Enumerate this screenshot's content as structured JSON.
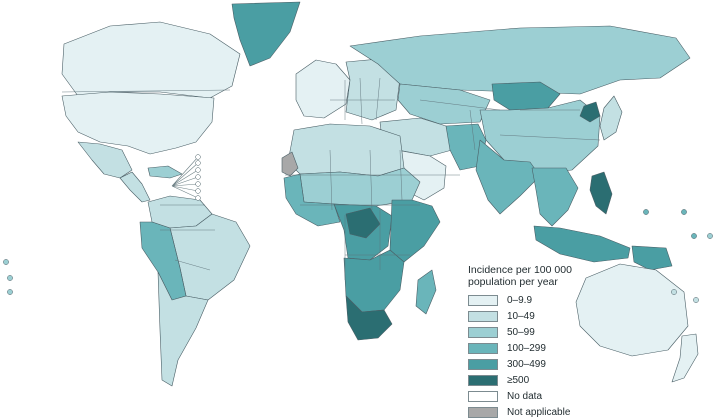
{
  "legend": {
    "title": "Incidence per 100 000 population per year",
    "items": [
      {
        "label": "0–9.9",
        "color": "#e4f1f3"
      },
      {
        "label": "10–49",
        "color": "#c3e0e3"
      },
      {
        "label": "50–99",
        "color": "#9ccfd3"
      },
      {
        "label": "100–299",
        "color": "#6ab5ba"
      },
      {
        "label": "300–499",
        "color": "#4a9ea3"
      },
      {
        "label": "≥500",
        "color": "#2b6e72"
      },
      {
        "label": "No data",
        "color": "#ffffff"
      },
      {
        "label": "Not applicable",
        "color": "#a8a8a8"
      }
    ]
  },
  "map_regions": [
    {
      "name": "Greenland",
      "band": "300–499"
    },
    {
      "name": "Canada",
      "band": "0–9.9"
    },
    {
      "name": "United States",
      "band": "0–9.9"
    },
    {
      "name": "Mexico",
      "band": "10–49"
    },
    {
      "name": "Central America",
      "band": "10–49"
    },
    {
      "name": "Caribbean",
      "band": "50–99"
    },
    {
      "name": "Colombia / Venezuela",
      "band": "10–49"
    },
    {
      "name": "Brazil",
      "band": "10–49"
    },
    {
      "name": "Peru / Bolivia",
      "band": "100–299"
    },
    {
      "name": "Southern Cone",
      "band": "10–49"
    },
    {
      "name": "Western Europe",
      "band": "0–9.9"
    },
    {
      "name": "Eastern Europe",
      "band": "10–49"
    },
    {
      "name": "Russia",
      "band": "50–99"
    },
    {
      "name": "Kazakhstan / Central Asia",
      "band": "50–99"
    },
    {
      "name": "Mongolia",
      "band": "300–499"
    },
    {
      "name": "China",
      "band": "50–99"
    },
    {
      "name": "North Korea",
      "band": "≥500"
    },
    {
      "name": "Japan",
      "band": "10–49"
    },
    {
      "name": "Middle East",
      "band": "10–49"
    },
    {
      "name": "Arabian Peninsula",
      "band": "0–9.9"
    },
    {
      "name": "Pakistan / Afghanistan",
      "band": "100–299"
    },
    {
      "name": "India",
      "band": "100–299"
    },
    {
      "name": "Southeast Asia",
      "band": "100–299"
    },
    {
      "name": "Indonesia",
      "band": "300–499"
    },
    {
      "name": "Papua New Guinea",
      "band": "300–499"
    },
    {
      "name": "Philippines",
      "band": "≥500"
    },
    {
      "name": "Australia",
      "band": "0–9.9"
    },
    {
      "name": "New Zealand",
      "band": "0–9.9"
    },
    {
      "name": "North Africa",
      "band": "10–49"
    },
    {
      "name": "Western Sahara",
      "band": "Not applicable"
    },
    {
      "name": "Sahel",
      "band": "50–99"
    },
    {
      "name": "West Africa",
      "band": "100–299"
    },
    {
      "name": "Central Africa",
      "band": "300–499"
    },
    {
      "name": "Gabon / Congo",
      "band": "≥500"
    },
    {
      "name": "East Africa",
      "band": "300–499"
    },
    {
      "name": "Southern Africa",
      "band": "300–499"
    },
    {
      "name": "South Africa / Lesotho",
      "band": "≥500"
    },
    {
      "name": "Madagascar",
      "band": "100–299"
    }
  ]
}
